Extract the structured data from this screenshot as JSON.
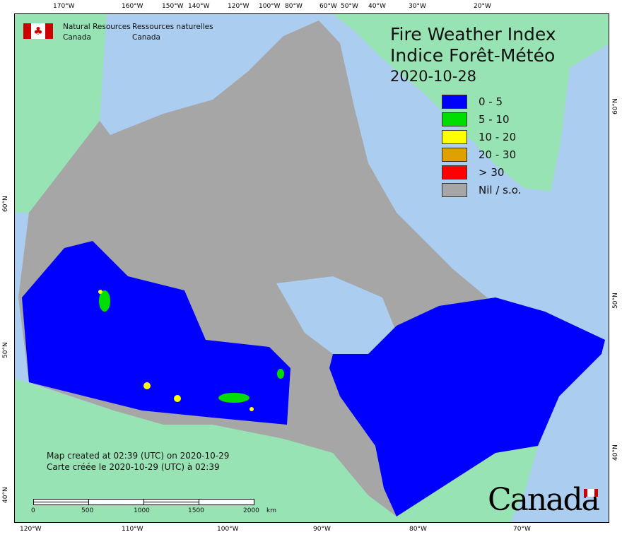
{
  "title": {
    "en": "Fire Weather Index",
    "fr": "Indice Forêt-Météo",
    "date": "2020-10-28"
  },
  "agency": {
    "en_line1": "Natural Resources",
    "en_line2": "Canada",
    "fr_line1": "Ressources naturelles",
    "fr_line2": "Canada"
  },
  "legend": [
    {
      "label": "0 - 5",
      "color": "#0000ff"
    },
    {
      "label": "5 - 10",
      "color": "#00dd00"
    },
    {
      "label": "10 - 20",
      "color": "#ffff00"
    },
    {
      "label": "20 - 30",
      "color": "#e0a000"
    },
    {
      "label": "> 30",
      "color": "#ff0000"
    },
    {
      "label": "Nil / s.o.",
      "color": "#a6a6a6"
    }
  ],
  "notes": {
    "en": "Map created at 02:39 (UTC) on 2020-10-29",
    "fr": "Carte créée le 2020-10-29 (UTC) à 02:39"
  },
  "scalebar": {
    "labels": [
      "0",
      "500",
      "1000",
      "1500",
      "2000"
    ],
    "unit": "km"
  },
  "top_ticks": [
    "170°W",
    "160°W",
    "150°W",
    "140°W",
    "120°W",
    "100°W",
    "80°W",
    "60°W",
    "50°W",
    "40°W",
    "30°W",
    "20°W"
  ],
  "bottom_ticks": [
    "120°W",
    "110°W",
    "100°W",
    "90°W",
    "80°W",
    "70°W"
  ],
  "left_ticks": [
    "60°N",
    "50°N",
    "40°N"
  ],
  "right_ticks": [
    "60°N",
    "50°N",
    "40°N"
  ],
  "wordmark": "Canada",
  "colors": {
    "ocean": "#abcdf0",
    "foreign_land": "#98e3b4",
    "nil": "#a6a6a6"
  }
}
